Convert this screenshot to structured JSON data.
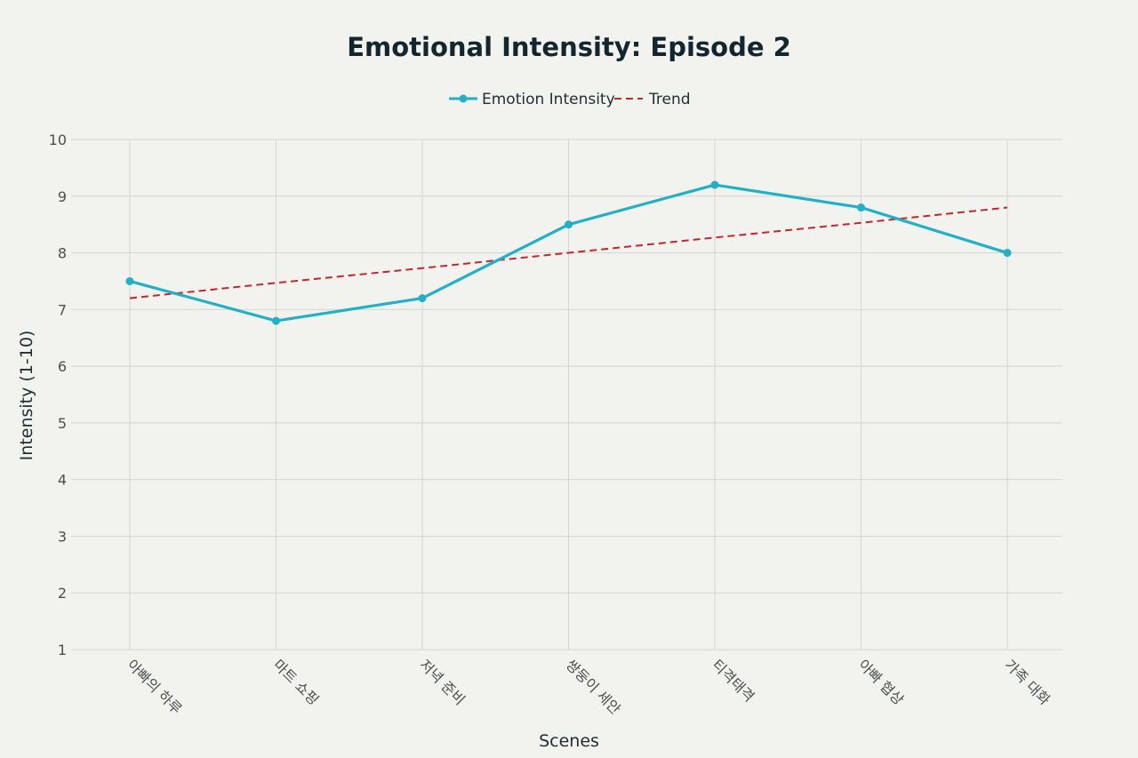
{
  "colors": {
    "background": "#f2f2ee",
    "grid": "#d4d6d3",
    "series_line": "#22b0c6",
    "trend_line": "#c0282c",
    "title": "#13262f"
  },
  "chart_data": {
    "type": "line",
    "title": "Emotional Intensity: Episode 2",
    "xlabel": "Scenes",
    "ylabel": "Intensity (1-10)",
    "categories": [
      "아빠의 하루",
      "마트 쇼핑",
      "저녁 준비",
      "쌍둥이 세안",
      "티격태격",
      "아빠 협상",
      "가족 대화"
    ],
    "ylim": [
      1,
      10
    ],
    "yticks": [
      "1",
      "2",
      "3",
      "4",
      "5",
      "6",
      "7",
      "8",
      "9",
      "10"
    ],
    "grid": true,
    "legend_position": "top-center",
    "series": [
      {
        "name": "Emotion Intensity",
        "style": "solid-markers",
        "values": [
          7.5,
          6.8,
          7.2,
          8.5,
          9.2,
          8.8,
          8.0
        ]
      },
      {
        "name": "Trend",
        "style": "dashed",
        "values": [
          7.2,
          7.47,
          7.73,
          8.0,
          8.27,
          8.53,
          8.8
        ]
      }
    ]
  }
}
